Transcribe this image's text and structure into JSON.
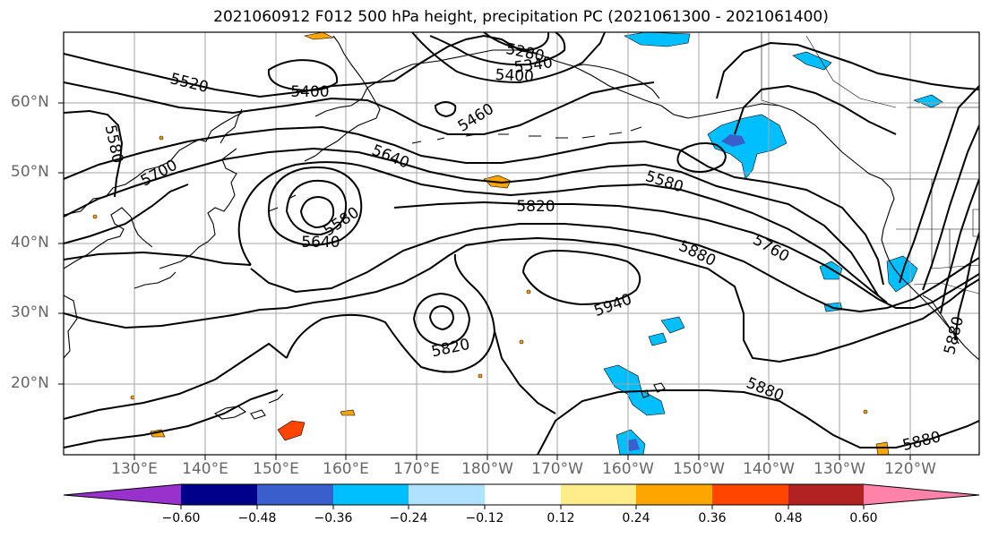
{
  "title": "2021060912 F012 500 hPa height, precipitation PC (2021061300 - 2021061400)",
  "lat_labels": [
    "60°N",
    "50°N",
    "40°N",
    "30°N",
    "20°N"
  ],
  "lon_labels": [
    "130°E",
    "140°E",
    "150°E",
    "160°E",
    "170°E",
    "180°W",
    "170°W",
    "160°W",
    "150°W",
    "140°W",
    "130°W",
    "120°W"
  ],
  "contour_labels": [
    "5280",
    "5340",
    "5400",
    "5400",
    "5460",
    "5520",
    "5580",
    "5580",
    "5580",
    "5640",
    "5640",
    "5700",
    "5760",
    "5820",
    "5820",
    "5880",
    "5880",
    "5880",
    "5940",
    "5880"
  ],
  "colorbar": {
    "ticks": [
      "−0.60",
      "−0.48",
      "−0.36",
      "−0.24",
      "−0.12",
      "0.12",
      "0.24",
      "0.36",
      "0.48",
      "0.60"
    ],
    "colors": [
      "#9932cc",
      "#00008b",
      "#3a5fcd",
      "#00bfff",
      "#b0e2ff",
      "#ffffff",
      "#ffec8b",
      "#ffa500",
      "#ff4500",
      "#b22222",
      "#ff82ab"
    ]
  },
  "colors": {
    "contour": "#000000",
    "grid": "#a6a6a6",
    "coast": "#000000",
    "axis_label": "#666666"
  }
}
